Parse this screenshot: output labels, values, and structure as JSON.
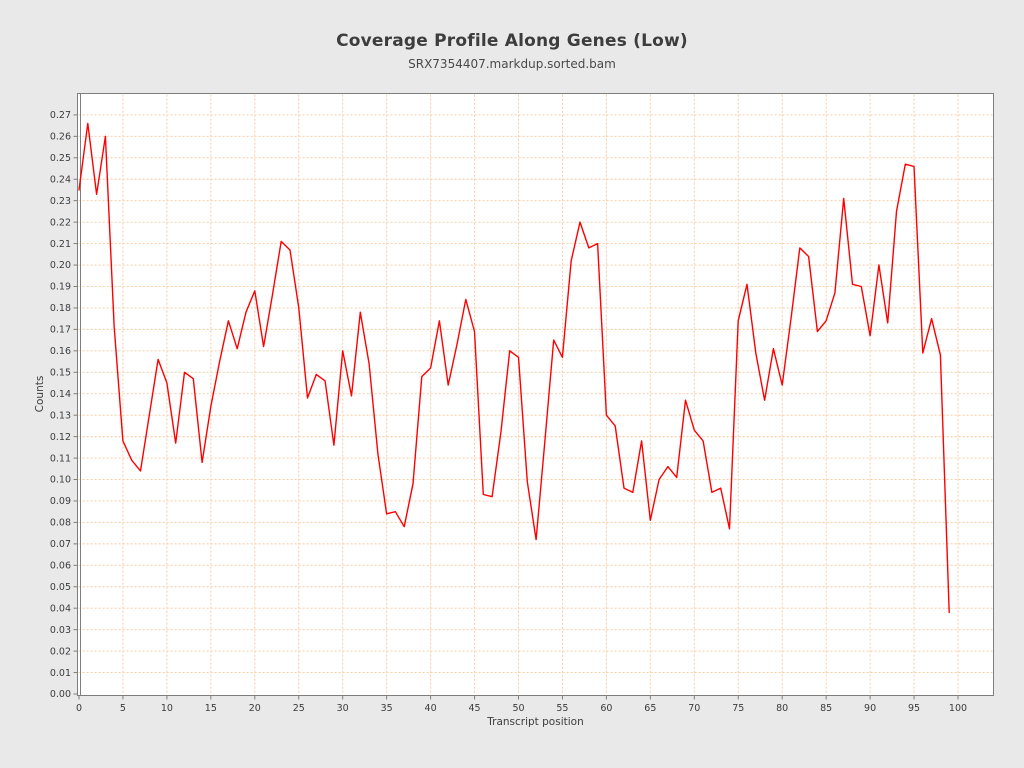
{
  "header": {
    "title": "Coverage Profile Along Genes (Low)",
    "subtitle": "SRX7354407.markdup.sorted.bam"
  },
  "colors": {
    "page_background": "#e9e9e9",
    "plot_background": "#ffffff",
    "plot_border": "#7e7e7e",
    "grid": "#f6cba4",
    "series": "#ff0000",
    "tick_text": "#3c3c3c",
    "title_text": "#3d3d3d"
  },
  "chart_data": {
    "type": "line",
    "title": "Coverage Profile Along Genes (Low)",
    "subtitle": "SRX7354407.markdup.sorted.bam",
    "xlabel": "Transcript position",
    "ylabel": "Counts",
    "grid": true,
    "legend": false,
    "x_start": 0,
    "x_step": 1,
    "xlim": [
      0,
      104
    ],
    "ylim": [
      0,
      0.28
    ],
    "x_ticks": [
      0,
      5,
      10,
      15,
      20,
      25,
      30,
      35,
      40,
      45,
      50,
      55,
      60,
      65,
      70,
      75,
      80,
      85,
      90,
      95,
      100
    ],
    "y_ticks": [
      0.0,
      0.01,
      0.02,
      0.03,
      0.04,
      0.05,
      0.06,
      0.07,
      0.08,
      0.09,
      0.1,
      0.11,
      0.12,
      0.13,
      0.14,
      0.15,
      0.16,
      0.17,
      0.18,
      0.19,
      0.2,
      0.21,
      0.22,
      0.23,
      0.24,
      0.25,
      0.26,
      0.27
    ],
    "y_tick_format_decimals": 2,
    "values": [
      0.235,
      0.266,
      0.233,
      0.26,
      0.171,
      0.118,
      0.109,
      0.104,
      0.13,
      0.156,
      0.145,
      0.117,
      0.15,
      0.147,
      0.108,
      0.134,
      0.155,
      0.174,
      0.161,
      0.178,
      0.188,
      0.162,
      0.186,
      0.211,
      0.207,
      0.18,
      0.138,
      0.149,
      0.146,
      0.116,
      0.16,
      0.139,
      0.178,
      0.154,
      0.112,
      0.084,
      0.085,
      0.078,
      0.098,
      0.148,
      0.152,
      0.174,
      0.144,
      0.163,
      0.184,
      0.169,
      0.093,
      0.092,
      0.122,
      0.16,
      0.157,
      0.099,
      0.072,
      0.118,
      0.165,
      0.157,
      0.202,
      0.22,
      0.208,
      0.21,
      0.13,
      0.125,
      0.096,
      0.094,
      0.118,
      0.081,
      0.1,
      0.106,
      0.101,
      0.137,
      0.123,
      0.118,
      0.094,
      0.096,
      0.077,
      0.174,
      0.191,
      0.159,
      0.137,
      0.161,
      0.144,
      0.175,
      0.208,
      0.204,
      0.169,
      0.174,
      0.187,
      0.231,
      0.191,
      0.19,
      0.167,
      0.2,
      0.173,
      0.225,
      0.247,
      0.246,
      0.159,
      0.175,
      0.158,
      0.038
    ]
  }
}
